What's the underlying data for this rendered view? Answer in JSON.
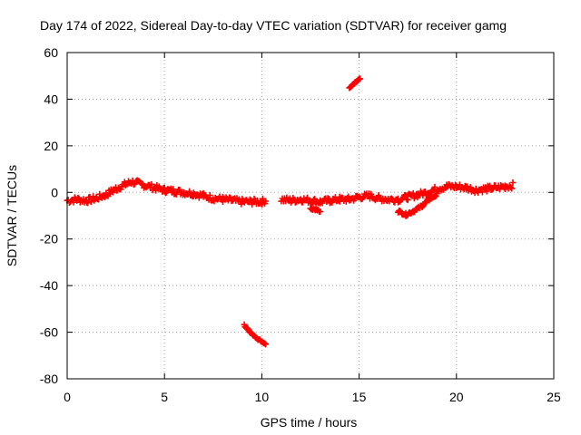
{
  "chart_data": {
    "type": "scatter",
    "title": "Day 174 of 2022, Sidereal Day-to-day VTEC variation (SDTVAR) for receiver gamg",
    "xlabel": "GPS time / hours",
    "ylabel": "SDTVAR / TECUs",
    "xlim": [
      0,
      25
    ],
    "ylim": [
      -80,
      60
    ],
    "xticks": [
      0,
      5,
      10,
      15,
      20,
      25
    ],
    "yticks": [
      -80,
      -60,
      -40,
      -20,
      0,
      20,
      40,
      60
    ],
    "grid": true,
    "marker": "plus",
    "series": [
      {
        "name": "SDTVAR",
        "color": "#ff0000",
        "segments": [
          {
            "x": [
              0.0,
              0.5,
              1.0,
              1.5,
              2.0,
              2.5,
              3.0,
              3.3,
              3.6,
              4.0,
              4.5,
              5.0,
              5.5,
              6.0,
              6.5,
              7.0,
              7.5,
              8.0,
              8.5,
              9.0,
              9.5,
              10.0,
              10.2
            ],
            "y": [
              -3.5,
              -3.0,
              -3.5,
              -2.5,
              -1.0,
              1.5,
              3.5,
              4.5,
              4.0,
              3.0,
              2.0,
              1.0,
              0.5,
              0.0,
              -0.5,
              -1.5,
              -2.5,
              -3.0,
              -3.5,
              -4.0,
              -4.0,
              -4.0,
              -3.5
            ],
            "spread": 2.5
          },
          {
            "x": [
              11.0,
              11.5,
              12.0,
              12.5,
              13.0,
              13.5,
              14.0,
              14.5,
              15.0,
              15.5,
              16.0,
              16.5,
              17.0,
              17.5,
              18.0,
              18.5,
              19.0,
              19.5,
              20.0,
              20.5,
              21.0,
              21.5,
              22.0,
              22.5,
              22.9
            ],
            "y": [
              -3.0,
              -3.5,
              -3.0,
              -3.5,
              -4.0,
              -3.5,
              -3.0,
              -3.0,
              -2.0,
              -1.5,
              -2.5,
              -3.0,
              -3.0,
              -2.0,
              -1.0,
              0.0,
              1.5,
              2.5,
              2.5,
              2.0,
              1.0,
              1.5,
              2.0,
              2.5,
              3.0
            ],
            "spread": 2.5
          },
          {
            "x": [
              12.5,
              12.8,
              13.0
            ],
            "y": [
              -7.0,
              -7.5,
              -8.0
            ],
            "spread": 0.8
          },
          {
            "x": [
              17.0,
              17.4,
              17.8,
              18.2,
              18.6,
              19.0
            ],
            "y": [
              -8.0,
              -9.5,
              -8.0,
              -6.0,
              -3.0,
              -1.0
            ],
            "spread": 1.2
          },
          {
            "x": [
              9.1,
              9.4,
              9.7,
              10.0,
              10.2
            ],
            "y": [
              -57.0,
              -60.0,
              -62.5,
              -64.0,
              -65.0
            ],
            "spread": 0.6
          },
          {
            "x": [
              14.5,
              14.7,
              14.9,
              15.05
            ],
            "y": [
              45.0,
              46.5,
              48.0,
              49.0
            ],
            "spread": 0.6
          }
        ]
      }
    ]
  }
}
